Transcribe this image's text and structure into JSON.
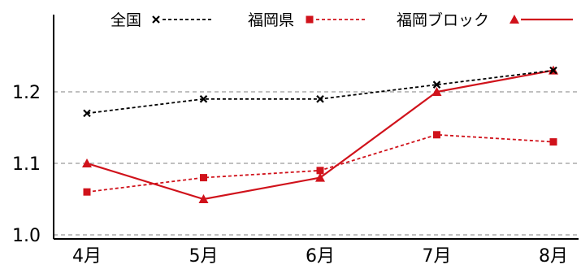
{
  "chart_data": {
    "type": "line",
    "categories": [
      "4月",
      "5月",
      "6月",
      "7月",
      "8月"
    ],
    "series": [
      {
        "name": "全国",
        "values": [
          1.17,
          1.19,
          1.19,
          1.21,
          1.23
        ],
        "color": "#000000",
        "line_style": "dashed",
        "marker": "x-mark"
      },
      {
        "name": "福岡県",
        "values": [
          1.06,
          1.08,
          1.09,
          1.14,
          1.13
        ],
        "color": "#d0121b",
        "line_style": "dashed",
        "marker": "square"
      },
      {
        "name": "福岡ブロック",
        "values": [
          1.1,
          1.05,
          1.08,
          1.2,
          1.23
        ],
        "color": "#d0121b",
        "line_style": "solid",
        "marker": "triangle"
      }
    ],
    "y_ticks": [
      1.0,
      1.1,
      1.2
    ],
    "y_tick_labels": [
      "1.0",
      "1.1",
      "1.2"
    ],
    "ylim": [
      0.99,
      1.29
    ],
    "grid": "horizontal dashed at y ticks",
    "legend_position": "top"
  }
}
